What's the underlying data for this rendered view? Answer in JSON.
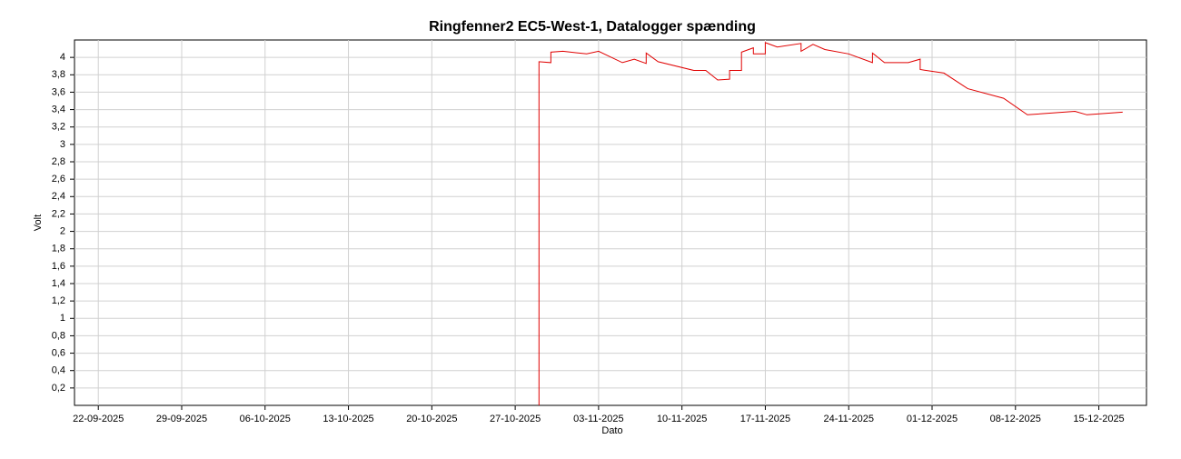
{
  "chart_data": {
    "type": "line",
    "title": "Ringfenner2 EC5-West-1, Datalogger spænding",
    "x_label": "Dato",
    "y_label": "Volt",
    "x": [
      "2025-10-29",
      "2025-10-29",
      "2025-10-30",
      "2025-10-30",
      "2025-10-31",
      "2025-11-02",
      "2025-11-03",
      "2025-11-05",
      "2025-11-06",
      "2025-11-07",
      "2025-11-07",
      "2025-11-08",
      "2025-11-11",
      "2025-11-12",
      "2025-11-13",
      "2025-11-14",
      "2025-11-14",
      "2025-11-15",
      "2025-11-15",
      "2025-11-16",
      "2025-11-16",
      "2025-11-17",
      "2025-11-17",
      "2025-11-18",
      "2025-11-20",
      "2025-11-20",
      "2025-11-21",
      "2025-11-22",
      "2025-11-24",
      "2025-11-26",
      "2025-11-26",
      "2025-11-27",
      "2025-11-29",
      "2025-11-30",
      "2025-11-30",
      "2025-12-02",
      "2025-12-04",
      "2025-12-07",
      "2025-12-09",
      "2025-12-13",
      "2025-12-14",
      "2025-12-17"
    ],
    "series": [
      {
        "name": "Datalogger spænding",
        "color": "#e00000",
        "values": [
          0,
          3.95,
          3.94,
          4.06,
          4.07,
          4.04,
          4.07,
          3.94,
          3.98,
          3.93,
          4.05,
          3.95,
          3.85,
          3.85,
          3.74,
          3.75,
          3.85,
          3.85,
          4.06,
          4.11,
          4.04,
          4.04,
          4.17,
          4.12,
          4.16,
          4.07,
          4.15,
          4.09,
          4.04,
          3.94,
          4.05,
          3.94,
          3.94,
          3.98,
          3.86,
          3.82,
          3.64,
          3.53,
          3.34,
          3.38,
          3.34,
          3.37
        ]
      }
    ],
    "xlim": [
      "2025-09-20",
      "2025-12-19"
    ],
    "xticks": [
      {
        "value": "2025-09-22",
        "label": "22-09-2025"
      },
      {
        "value": "2025-09-29",
        "label": "29-09-2025"
      },
      {
        "value": "2025-10-06",
        "label": "06-10-2025"
      },
      {
        "value": "2025-10-13",
        "label": "13-10-2025"
      },
      {
        "value": "2025-10-20",
        "label": "20-10-2025"
      },
      {
        "value": "2025-10-27",
        "label": "27-10-2025"
      },
      {
        "value": "2025-11-03",
        "label": "03-11-2025"
      },
      {
        "value": "2025-11-10",
        "label": "10-11-2025"
      },
      {
        "value": "2025-11-17",
        "label": "17-11-2025"
      },
      {
        "value": "2025-11-24",
        "label": "24-11-2025"
      },
      {
        "value": "2025-12-01",
        "label": "01-12-2025"
      },
      {
        "value": "2025-12-08",
        "label": "08-12-2025"
      },
      {
        "value": "2025-12-15",
        "label": "15-12-2025"
      }
    ],
    "ylim": [
      0,
      4.2
    ],
    "yticks": [
      {
        "value": 0.2,
        "label": "0,2"
      },
      {
        "value": 0.4,
        "label": "0,4"
      },
      {
        "value": 0.6,
        "label": "0,6"
      },
      {
        "value": 0.8,
        "label": "0,8"
      },
      1,
      {
        "value": 1.2,
        "label": "1,2"
      },
      {
        "value": 1.4,
        "label": "1,4"
      },
      {
        "value": 1.6,
        "label": "1,6"
      },
      {
        "value": 1.8,
        "label": "1,8"
      },
      2,
      {
        "value": 2.2,
        "label": "2,2"
      },
      {
        "value": 2.4,
        "label": "2,4"
      },
      {
        "value": 2.6,
        "label": "2,6"
      },
      {
        "value": 2.8,
        "label": "2,8"
      },
      3,
      {
        "value": 3.2,
        "label": "3,2"
      },
      {
        "value": 3.4,
        "label": "3,4"
      },
      {
        "value": 3.6,
        "label": "3,6"
      },
      {
        "value": 3.8,
        "label": "3,8"
      },
      4
    ],
    "grid": true
  }
}
